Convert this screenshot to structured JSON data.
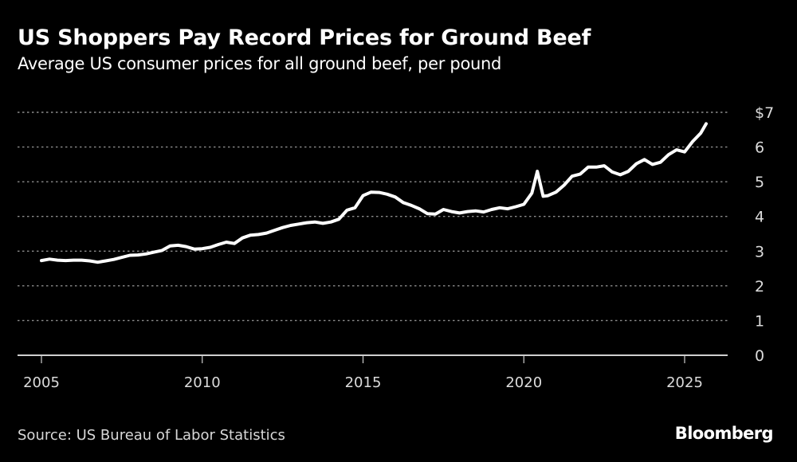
{
  "header": {
    "title": "US Shoppers Pay Record Prices for Ground Beef",
    "subtitle": "Average US consumer prices for all ground beef, per pound"
  },
  "footer": {
    "source": "Source: US Bureau of Labor Statistics",
    "brand": "Bloomberg"
  },
  "colors": {
    "background": "#000000",
    "line": "#ffffff",
    "grid": "#8c8c8c",
    "axis": "#cfcfcf",
    "text": "#dcdcdc"
  },
  "chart_data": {
    "type": "line",
    "title": "US Shoppers Pay Record Prices for Ground Beef",
    "subtitle": "Average US consumer prices for all ground beef, per pound",
    "xlabel": "",
    "ylabel": "",
    "y_unit": "$ per pound",
    "ylim": [
      0,
      7
    ],
    "xlim": [
      2005,
      2026.3
    ],
    "y_ticks": [
      0,
      1,
      2,
      3,
      4,
      5,
      6,
      7
    ],
    "y_tick_labels": [
      "0",
      "1",
      "2",
      "3",
      "4",
      "5",
      "6",
      "$7"
    ],
    "x_ticks": [
      2005,
      2010,
      2015,
      2020,
      2025
    ],
    "x_tick_labels": [
      "2005",
      "2010",
      "2015",
      "2020",
      "2025"
    ],
    "grid": "horizontal dotted",
    "legend": "none",
    "source": "Source: US Bureau of Labor Statistics",
    "series": [
      {
        "name": "Average price of all ground beef ($/lb)",
        "x": [
          2005.0,
          2005.25,
          2005.5,
          2005.75,
          2006.0,
          2006.25,
          2006.5,
          2006.75,
          2007.0,
          2007.25,
          2007.5,
          2007.75,
          2008.0,
          2008.25,
          2008.5,
          2008.75,
          2009.0,
          2009.25,
          2009.5,
          2009.75,
          2010.0,
          2010.25,
          2010.5,
          2010.75,
          2011.0,
          2011.25,
          2011.5,
          2011.75,
          2012.0,
          2012.25,
          2012.5,
          2012.75,
          2013.0,
          2013.25,
          2013.5,
          2013.75,
          2014.0,
          2014.25,
          2014.5,
          2014.75,
          2015.0,
          2015.25,
          2015.5,
          2015.75,
          2016.0,
          2016.25,
          2016.5,
          2016.75,
          2017.0,
          2017.25,
          2017.5,
          2017.75,
          2018.0,
          2018.25,
          2018.5,
          2018.75,
          2019.0,
          2019.25,
          2019.5,
          2019.75,
          2020.0,
          2020.25,
          2020.42,
          2020.6,
          2020.75,
          2021.0,
          2021.25,
          2021.5,
          2021.75,
          2022.0,
          2022.25,
          2022.5,
          2022.75,
          2023.0,
          2023.25,
          2023.5,
          2023.75,
          2024.0,
          2024.25,
          2024.5,
          2024.75,
          2025.0,
          2025.25,
          2025.5,
          2025.67
        ],
        "values": [
          2.73,
          2.77,
          2.74,
          2.73,
          2.74,
          2.74,
          2.72,
          2.68,
          2.72,
          2.76,
          2.82,
          2.88,
          2.89,
          2.92,
          2.97,
          3.02,
          3.15,
          3.17,
          3.13,
          3.06,
          3.07,
          3.11,
          3.19,
          3.26,
          3.22,
          3.38,
          3.46,
          3.48,
          3.52,
          3.6,
          3.68,
          3.74,
          3.78,
          3.82,
          3.84,
          3.8,
          3.84,
          3.92,
          4.18,
          4.25,
          4.6,
          4.7,
          4.69,
          4.64,
          4.56,
          4.4,
          4.32,
          4.22,
          4.08,
          4.07,
          4.2,
          4.14,
          4.1,
          4.14,
          4.16,
          4.13,
          4.2,
          4.25,
          4.22,
          4.28,
          4.35,
          4.67,
          5.3,
          4.58,
          4.6,
          4.7,
          4.9,
          5.16,
          5.22,
          5.42,
          5.42,
          5.46,
          5.28,
          5.2,
          5.3,
          5.52,
          5.64,
          5.5,
          5.56,
          5.78,
          5.92,
          5.86,
          6.16,
          6.4,
          6.67
        ]
      }
    ]
  }
}
